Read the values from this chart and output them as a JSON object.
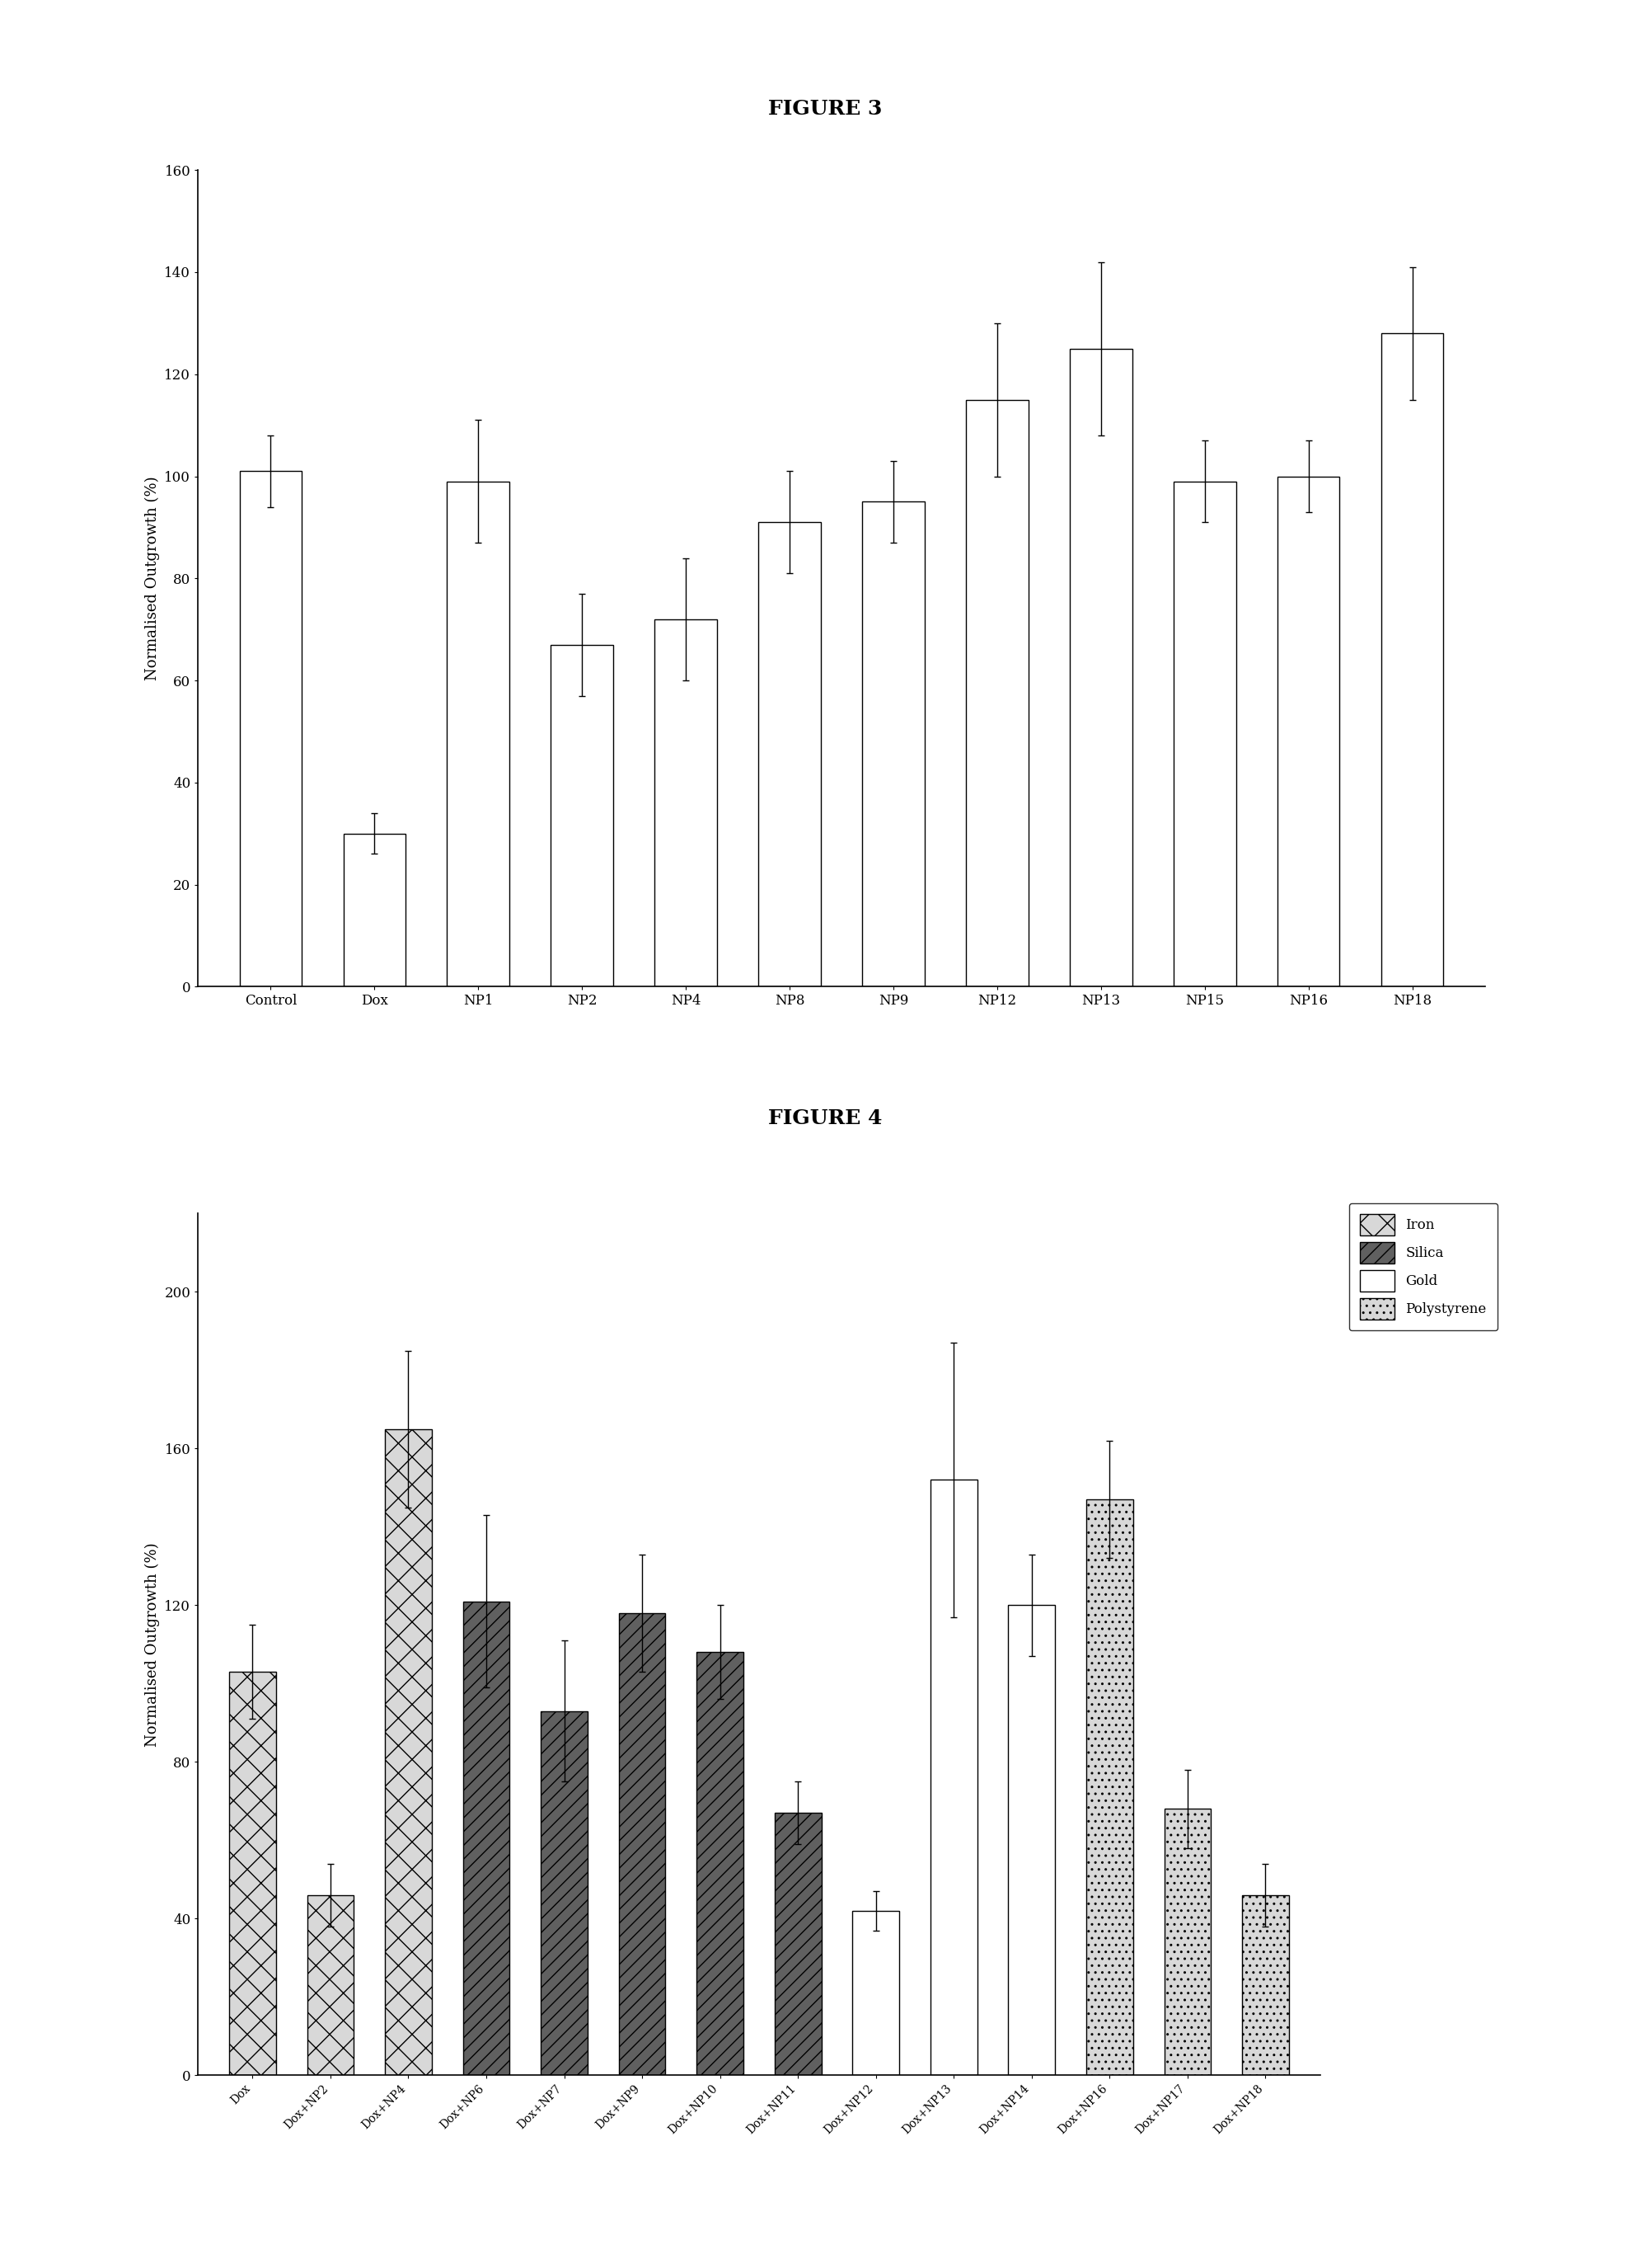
{
  "fig3": {
    "title": "FIGURE 3",
    "categories": [
      "Control",
      "Dox",
      "NP1",
      "NP2",
      "NP4",
      "NP8",
      "NP9",
      "NP12",
      "NP13",
      "NP15",
      "NP16",
      "NP18"
    ],
    "values": [
      101,
      30,
      99,
      67,
      72,
      91,
      95,
      115,
      125,
      99,
      100,
      128
    ],
    "errors": [
      7,
      4,
      12,
      10,
      12,
      10,
      8,
      15,
      17,
      8,
      7,
      13
    ],
    "ylim": [
      0,
      160
    ],
    "yticks": [
      0,
      20,
      40,
      60,
      80,
      100,
      120,
      140,
      160
    ],
    "ylabel": "Normalised Outgrowth (%)"
  },
  "fig4": {
    "title": "FIGURE 4",
    "categories": [
      "Dox",
      "Dox+NP2",
      "Dox+NP4",
      "Dox+NP6",
      "Dox+NP7",
      "Dox+NP9",
      "Dox+NP10",
      "Dox+NP11",
      "Dox+NP12",
      "Dox+NP13",
      "Dox+NP14",
      "Dox+NP16",
      "Dox+NP17",
      "Dox+NP18"
    ],
    "values": [
      103,
      46,
      165,
      121,
      93,
      118,
      108,
      67,
      42,
      152,
      120,
      147,
      68,
      46
    ],
    "errors": [
      12,
      8,
      20,
      22,
      18,
      15,
      12,
      8,
      5,
      35,
      13,
      15,
      10,
      8
    ],
    "ylim": [
      0,
      220
    ],
    "yticks": [
      0,
      40,
      80,
      120,
      160,
      200
    ],
    "ylabel": "Normalised Outgrowth (%)",
    "hatch_patterns": [
      "x",
      "x",
      "x",
      "//",
      "//",
      "//",
      "//",
      "//",
      "",
      "",
      "",
      "..",
      "..",
      ".."
    ],
    "face_colors": [
      "#d8d8d8",
      "#d8d8d8",
      "#d8d8d8",
      "#606060",
      "#606060",
      "#606060",
      "#606060",
      "#606060",
      "#ffffff",
      "#ffffff",
      "#ffffff",
      "#d8d8d8",
      "#d8d8d8",
      "#d8d8d8"
    ],
    "legend_labels": [
      "Iron",
      "Silica",
      "Gold",
      "Polystyrene"
    ],
    "legend_hatches": [
      "x",
      "//",
      "",
      ".."
    ],
    "legend_facecolors": [
      "#d8d8d8",
      "#606060",
      "#ffffff",
      "#d8d8d8"
    ]
  }
}
